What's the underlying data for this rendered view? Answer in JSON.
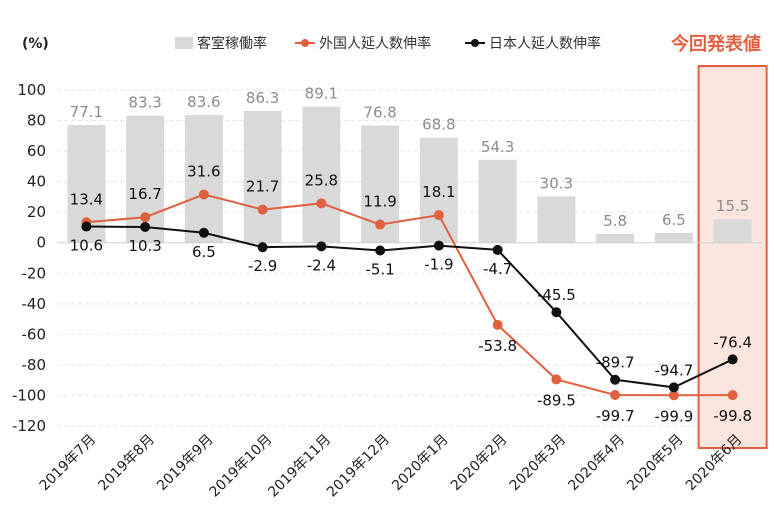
{
  "chart_data": {
    "type": "bar+line",
    "unit_label": "(%)",
    "categories": [
      "2019年7月",
      "2019年8月",
      "2019年9月",
      "2019年10月",
      "2019年11月",
      "2019年12月",
      "2020年1月",
      "2020年2月",
      "2020年3月",
      "2020年4月",
      "2020年5月",
      "2020年6月"
    ],
    "ylim": [
      -120,
      100
    ],
    "yticks": [
      100,
      80,
      60,
      40,
      20,
      0,
      -20,
      -40,
      -60,
      -80,
      -100,
      -120
    ],
    "grid": true,
    "legend_placement": "top",
    "series": [
      {
        "name": "客室稼働率",
        "kind": "bar",
        "color": "#d9d9d9",
        "label_color": "#8c8c8c",
        "values": [
          77.1,
          83.3,
          83.6,
          86.3,
          89.1,
          76.8,
          68.8,
          54.3,
          30.3,
          5.8,
          6.5,
          15.5
        ]
      },
      {
        "name": "外国人延人数伸率",
        "kind": "line",
        "color": "#e0603f",
        "label_color": "#e0603f",
        "values": [
          13.4,
          16.7,
          31.6,
          21.7,
          25.8,
          11.9,
          18.1,
          -53.8,
          -89.5,
          -99.7,
          -99.9,
          -99.8
        ]
      },
      {
        "name": "日本人延人数伸率",
        "kind": "line",
        "color": "#111111",
        "label_color": "#111111",
        "values": [
          10.6,
          10.3,
          6.5,
          -2.9,
          -2.4,
          -5.1,
          -1.9,
          -4.7,
          -45.5,
          -89.7,
          -94.7,
          -76.4
        ]
      }
    ],
    "highlight": {
      "label": "今回発表値",
      "category": "2020年6月",
      "color": "#e0603f"
    }
  }
}
